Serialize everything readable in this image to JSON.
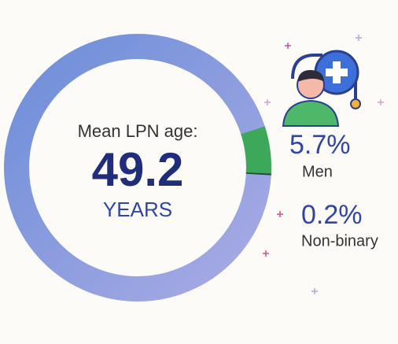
{
  "chart_data": {
    "type": "donut",
    "center_label": "Mean LPN age:",
    "center_value": 49.2,
    "center_unit": "YEARS",
    "categories": [
      "Men",
      "Non-binary"
    ],
    "values": [
      5.7,
      0.2
    ],
    "value_labels": [
      "5.7%",
      "0.2%"
    ],
    "colors": [
      "#3ea85a",
      "#1d4f2c"
    ],
    "track_colors": [
      "#6d8ed9",
      "#a9abe4"
    ]
  }
}
